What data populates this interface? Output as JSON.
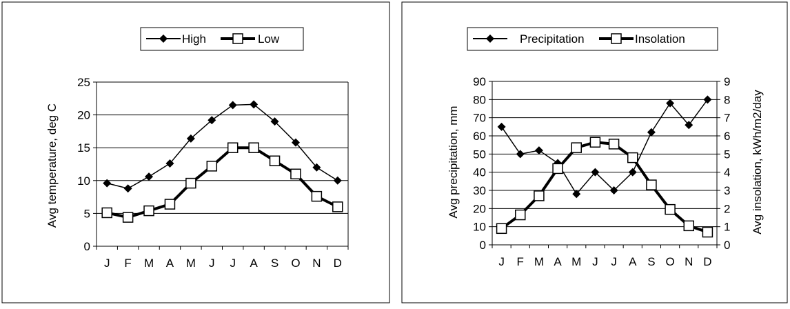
{
  "chart_data": [
    {
      "type": "line",
      "categories": [
        "J",
        "F",
        "M",
        "A",
        "M",
        "J",
        "J",
        "A",
        "S",
        "O",
        "N",
        "D"
      ],
      "ylabel": "Avg  temperature, deg C",
      "ylim": [
        0,
        25
      ],
      "yticks": [
        "0",
        "5",
        "10",
        "15",
        "20",
        "25"
      ],
      "grid": true,
      "legend_position": "top-center",
      "series": [
        {
          "name": "High",
          "marker": "diamond",
          "values": [
            9.6,
            8.8,
            10.6,
            12.6,
            16.4,
            19.2,
            21.5,
            21.6,
            19.0,
            15.8,
            12.0,
            10.0
          ]
        },
        {
          "name": "Low",
          "marker": "open-square",
          "values": [
            5.1,
            4.4,
            5.4,
            6.4,
            9.6,
            12.2,
            15.0,
            15.0,
            13.0,
            11.0,
            7.6,
            6.0
          ]
        }
      ]
    },
    {
      "type": "line",
      "categories": [
        "J",
        "F",
        "M",
        "A",
        "M",
        "J",
        "J",
        "A",
        "S",
        "O",
        "N",
        "D"
      ],
      "ylabel": "Avg precipitation, mm",
      "ylabel_right": "Avg insolation, kWh/m2/day",
      "ylim": [
        0,
        90
      ],
      "ylim_right": [
        0,
        9
      ],
      "yticks": [
        "0",
        "10",
        "20",
        "30",
        "40",
        "50",
        "60",
        "70",
        "80",
        "90"
      ],
      "yticks_right": [
        "0",
        "1",
        "2",
        "3",
        "4",
        "5",
        "6",
        "7",
        "8",
        "9"
      ],
      "grid": true,
      "legend_position": "top-center",
      "series": [
        {
          "name": "Precipitation",
          "marker": "diamond",
          "axis": "left",
          "values": [
            65,
            50,
            52,
            45,
            28,
            40,
            30,
            40,
            62,
            78,
            66,
            80
          ]
        },
        {
          "name": "Insolation",
          "marker": "open-square",
          "axis": "right",
          "values": [
            0.9,
            1.65,
            2.7,
            4.2,
            5.35,
            5.65,
            5.55,
            4.8,
            3.3,
            1.95,
            1.05,
            0.7
          ]
        }
      ]
    }
  ]
}
